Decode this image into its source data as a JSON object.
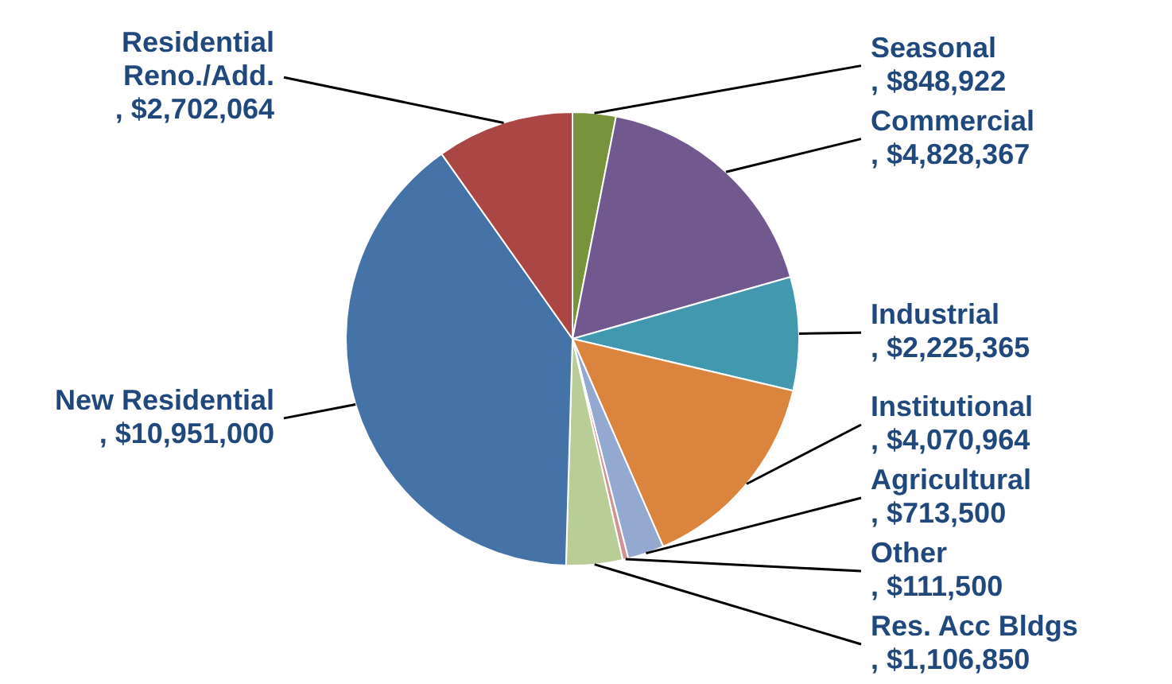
{
  "chart_data": {
    "type": "pie",
    "categories": [
      "Seasonal",
      "Commercial",
      "Industrial",
      "Institutional",
      "Agricultural",
      "Other",
      "Res. Acc Bldgs",
      "New Residential",
      "Residential Reno./Add."
    ],
    "values": [
      848922,
      4828367,
      2225365,
      4070964,
      713500,
      111500,
      1106850,
      10951000,
      2702064
    ],
    "value_labels": [
      ", $848,922",
      ", $4,828,367",
      ", $2,225,365",
      ", $4,070,964",
      ", $713,500",
      ", $111,500",
      ", $1,106,850",
      ", $10,951,000",
      ", $2,702,064"
    ],
    "colors": [
      "#77933c",
      "#71588f",
      "#4198af",
      "#db843d",
      "#93a9cf",
      "#d19392",
      "#b9cd96",
      "#4572a7",
      "#aa4643"
    ],
    "legend": false
  }
}
